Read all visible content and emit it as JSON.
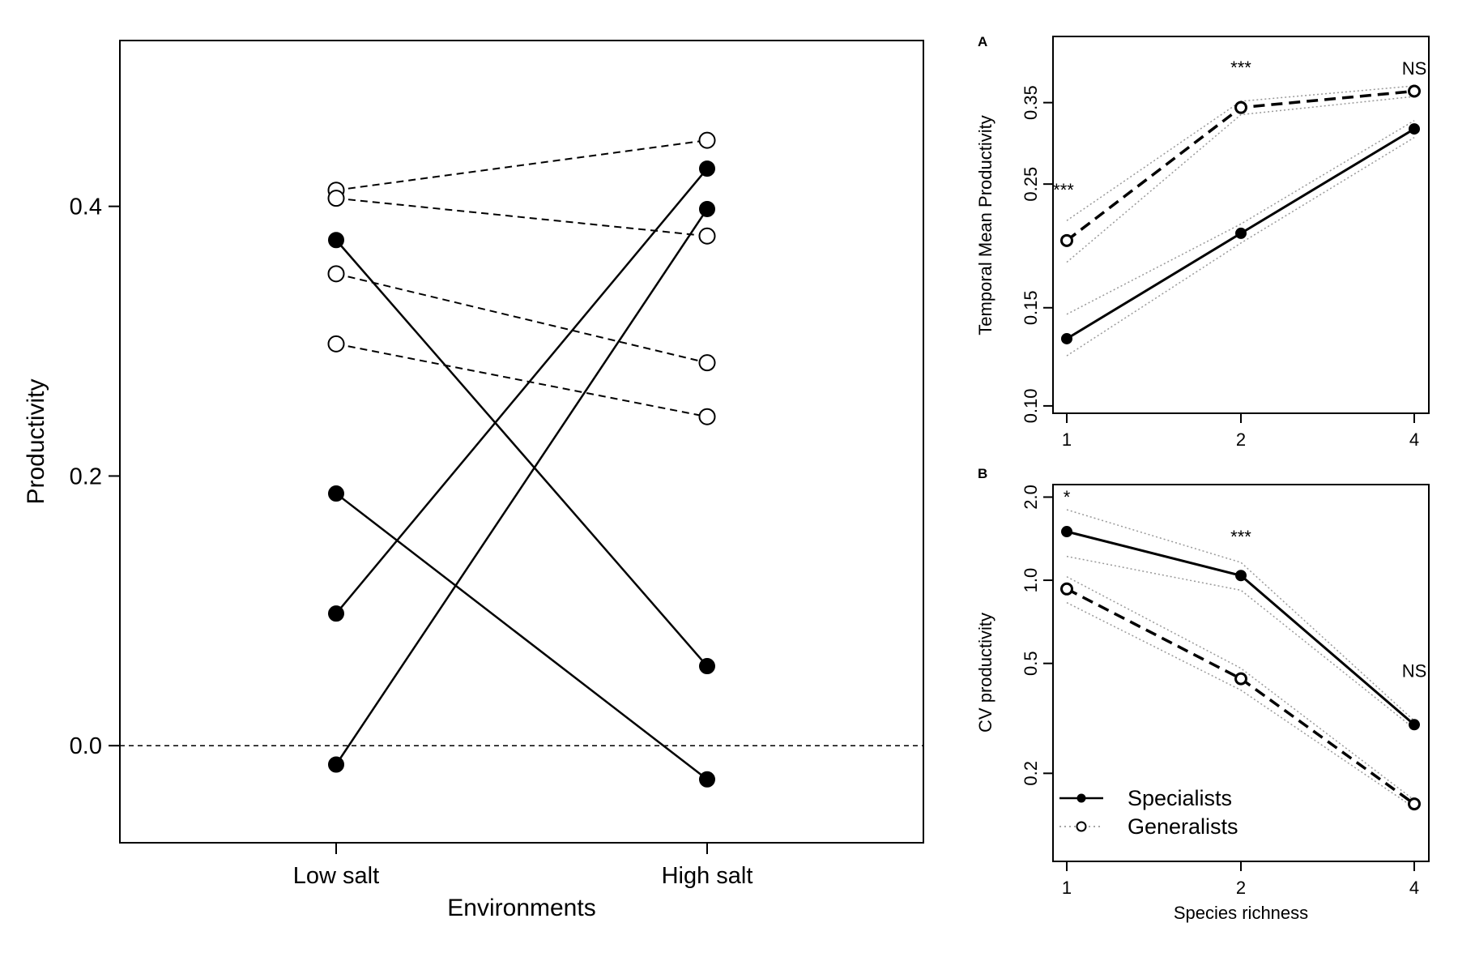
{
  "chart_data": [
    {
      "type": "line",
      "xlabel": "Environments",
      "ylabel": "Productivity",
      "categories": [
        "Low salt",
        "High salt"
      ],
      "yticks": [
        0.0,
        0.2,
        0.4
      ],
      "ytick_labels": [
        "0.0",
        "0.2",
        "0.4"
      ],
      "ylim": [
        -0.072,
        0.523
      ],
      "reference_line": {
        "y": 0.0,
        "style": "dashed"
      },
      "series": [
        {
          "group": "specialist",
          "marker": "filled",
          "line": "solid",
          "values": [
            0.375,
            0.059
          ]
        },
        {
          "group": "specialist",
          "marker": "filled",
          "line": "solid",
          "values": [
            0.187,
            -0.025
          ]
        },
        {
          "group": "specialist",
          "marker": "filled",
          "line": "solid",
          "values": [
            0.098,
            0.428
          ]
        },
        {
          "group": "specialist",
          "marker": "filled",
          "line": "solid",
          "values": [
            -0.014,
            0.398
          ]
        },
        {
          "group": "generalist",
          "marker": "open",
          "line": "dashed",
          "values": [
            0.412,
            0.449
          ]
        },
        {
          "group": "generalist",
          "marker": "open",
          "line": "dashed",
          "values": [
            0.406,
            0.378
          ]
        },
        {
          "group": "generalist",
          "marker": "open",
          "line": "dashed",
          "values": [
            0.35,
            0.284
          ]
        },
        {
          "group": "generalist",
          "marker": "open",
          "line": "dashed",
          "values": [
            0.298,
            0.244
          ]
        }
      ]
    },
    {
      "type": "line",
      "panel_label": "A",
      "xlabel": "",
      "ylabel": "Temporal Mean Productivity",
      "x": [
        1,
        2,
        4
      ],
      "xtick_labels": [
        "1",
        "2",
        "4"
      ],
      "yscale": "log",
      "yticks": [
        0.1,
        0.15,
        0.25,
        0.35
      ],
      "ytick_labels": [
        "0.10",
        "0.15",
        "0.25",
        "0.35"
      ],
      "ylim": [
        0.097,
        0.46
      ],
      "annotations": [
        "***",
        "***",
        "NS"
      ],
      "series": [
        {
          "group": "specialist",
          "marker": "filled",
          "line": "solid",
          "values": [
            0.132,
            0.204,
            0.314
          ],
          "lower": [
            0.123,
            0.196,
            0.303
          ],
          "upper": [
            0.146,
            0.212,
            0.325
          ]
        },
        {
          "group": "generalist",
          "marker": "open",
          "line": "dashed",
          "values": [
            0.198,
            0.343,
            0.367
          ],
          "lower": [
            0.181,
            0.333,
            0.359
          ],
          "upper": [
            0.215,
            0.352,
            0.375
          ]
        }
      ]
    },
    {
      "type": "line",
      "panel_label": "B",
      "xlabel": "Species richness",
      "ylabel": "CV productivity",
      "x": [
        1,
        2,
        4
      ],
      "xtick_labels": [
        "1",
        "2",
        "4"
      ],
      "yscale": "log",
      "yticks": [
        0.2,
        0.5,
        1.0,
        2.0
      ],
      "ytick_labels": [
        "0.2",
        "0.5",
        "1.0",
        "2.0"
      ],
      "ylim": [
        0.096,
        2.22
      ],
      "annotations": [
        "*",
        "***",
        "NS"
      ],
      "legend_position": "bottom-left",
      "series": [
        {
          "name": "Specialists",
          "marker": "filled",
          "line": "solid",
          "values": [
            1.5,
            1.04,
            0.3
          ],
          "lower": [
            1.22,
            0.92,
            0.29
          ],
          "upper": [
            1.8,
            1.16,
            0.31
          ]
        },
        {
          "name": "Generalists",
          "marker": "open",
          "line": "dashed",
          "values": [
            0.93,
            0.44,
            0.155
          ],
          "lower": [
            0.83,
            0.4,
            0.15
          ],
          "upper": [
            1.03,
            0.48,
            0.16
          ]
        }
      ]
    }
  ]
}
